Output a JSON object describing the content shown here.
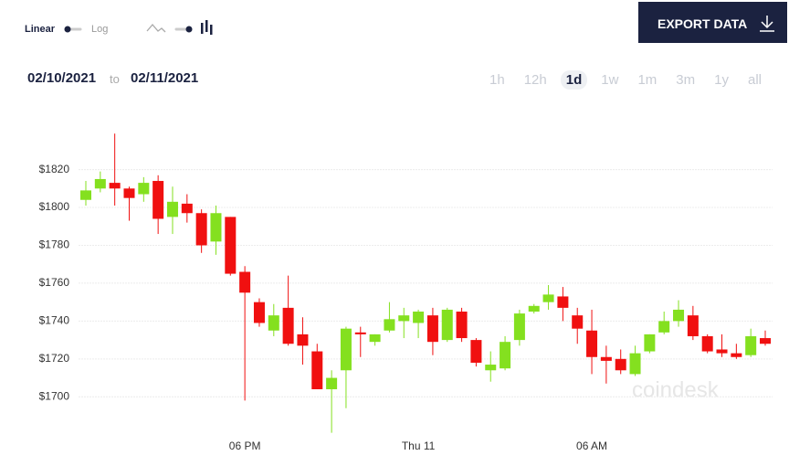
{
  "ui": {
    "scale_options": [
      "Linear",
      "Log"
    ],
    "export_button": "EXPORT DATA",
    "date_from": "02/10/2021",
    "date_separator": "to",
    "date_to": "02/11/2021",
    "ranges": [
      "1h",
      "12h",
      "1d",
      "1w",
      "1m",
      "3m",
      "1y",
      "all"
    ],
    "watermark": "coindesk"
  },
  "chart_data": {
    "type": "candlestick",
    "categories": [
      null,
      null,
      null,
      null,
      null,
      null,
      null,
      null,
      null,
      null,
      null,
      "06 PM",
      null,
      null,
      null,
      null,
      null,
      null,
      null,
      null,
      null,
      null,
      null,
      "Thu 11",
      null,
      null,
      null,
      null,
      null,
      null,
      null,
      null,
      null,
      null,
      null,
      "06 AM",
      null,
      null,
      null,
      null,
      null,
      null,
      null,
      null,
      null,
      null,
      null,
      null
    ],
    "open": [
      1804,
      1810,
      1813,
      1810,
      1807,
      1814,
      1795,
      1802,
      1797,
      1782,
      1795,
      1766,
      1750,
      1735,
      1747,
      1733,
      1724,
      1704,
      1714,
      1734,
      1729,
      1735,
      1740,
      1739,
      1743,
      1730,
      1745,
      1730,
      1714,
      1715,
      1730,
      1745,
      1750,
      1753,
      1743,
      1735,
      1721,
      1720,
      1712,
      1724,
      1734,
      1740,
      1743,
      1732,
      1725,
      1723,
      1722,
      1731
    ],
    "high": [
      1814,
      1819,
      1839,
      1811,
      1816,
      1817,
      1811,
      1807,
      1799,
      1801,
      1795,
      1769,
      1752,
      1749,
      1764,
      1742,
      1728,
      1714,
      1737,
      1737,
      1733,
      1750,
      1747,
      1746,
      1747,
      1747,
      1747,
      1731,
      1724,
      1732,
      1746,
      1749,
      1759,
      1758,
      1747,
      1746,
      1727,
      1725,
      1727,
      1733,
      1745,
      1751,
      1748,
      1733,
      1733,
      1728,
      1736,
      1735
    ],
    "low": [
      1801,
      1808,
      1801,
      1793,
      1803,
      1786,
      1786,
      1792,
      1776,
      1775,
      1764,
      1698,
      1737,
      1732,
      1727,
      1717,
      1704,
      1681,
      1694,
      1721,
      1727,
      1734,
      1731,
      1731,
      1722,
      1729,
      1729,
      1716,
      1708,
      1714,
      1727,
      1744,
      1746,
      1740,
      1728,
      1712,
      1707,
      1712,
      1711,
      1723,
      1733,
      1737,
      1730,
      1723,
      1721,
      1720,
      1721,
      1727
    ],
    "close": [
      1809,
      1815,
      1810,
      1805,
      1813,
      1794,
      1803,
      1797,
      1780,
      1797,
      1765,
      1755,
      1739,
      1743,
      1728,
      1727,
      1704,
      1710,
      1736,
      1733,
      1733,
      1741,
      1743,
      1745,
      1729,
      1746,
      1731,
      1718,
      1717,
      1729,
      1744,
      1748,
      1754,
      1747,
      1736,
      1721,
      1719,
      1714,
      1723,
      1733,
      1740,
      1746,
      1732,
      1724,
      1723,
      1721,
      1732,
      1728
    ],
    "up_color": "#84e01f",
    "down_color": "#f01010",
    "ylim": [
      1690,
      1842
    ],
    "yticks": [
      {
        "value": 1700,
        "label": "$1700"
      },
      {
        "value": 1720,
        "label": "$1720"
      },
      {
        "value": 1740,
        "label": "$1740"
      },
      {
        "value": 1760,
        "label": "$1760"
      },
      {
        "value": 1780,
        "label": "$1780"
      },
      {
        "value": 1800,
        "label": "$1800"
      },
      {
        "value": 1820,
        "label": "$1820"
      }
    ],
    "grid": true
  }
}
